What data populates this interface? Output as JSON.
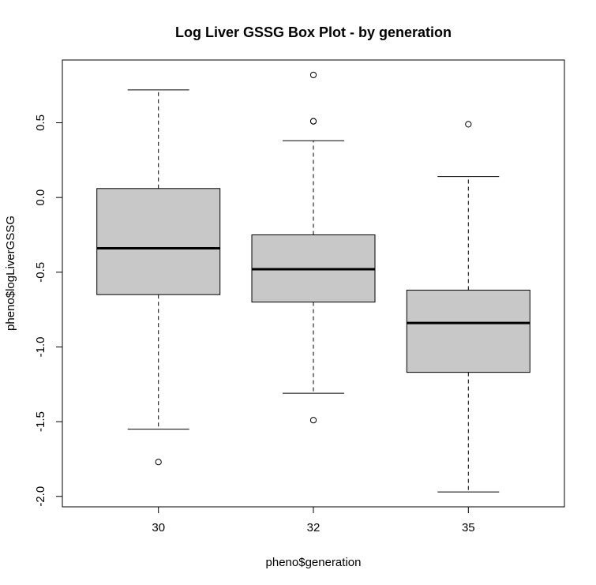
{
  "chart_data": {
    "type": "box",
    "title": "Log Liver GSSG Box Plot - by generation",
    "xlabel": "pheno$generation",
    "ylabel": "pheno$logLiverGSSG",
    "categories": [
      "30",
      "32",
      "35"
    ],
    "ylim": [
      -2.07,
      0.92
    ],
    "yticks": [
      0.5,
      0.0,
      -0.5,
      -1.0,
      -1.5,
      -2.0
    ],
    "ytick_labels": [
      "0.5",
      "0.0",
      "-0.5",
      "-1.0",
      "-1.5",
      "-2.0"
    ],
    "box_fill": "#c8c8c8",
    "boxes": [
      {
        "category": "30",
        "whisker_low": -1.55,
        "q1": -0.65,
        "median": -0.34,
        "q3": 0.06,
        "whisker_high": 0.72,
        "outliers": [
          -1.77
        ]
      },
      {
        "category": "32",
        "whisker_low": -1.31,
        "q1": -0.7,
        "median": -0.48,
        "q3": -0.25,
        "whisker_high": 0.38,
        "outliers": [
          0.82,
          0.51,
          0.51,
          -1.49
        ]
      },
      {
        "category": "35",
        "whisker_low": -1.97,
        "q1": -1.17,
        "median": -0.84,
        "q3": -0.62,
        "whisker_high": 0.14,
        "outliers": [
          0.49
        ]
      }
    ]
  }
}
